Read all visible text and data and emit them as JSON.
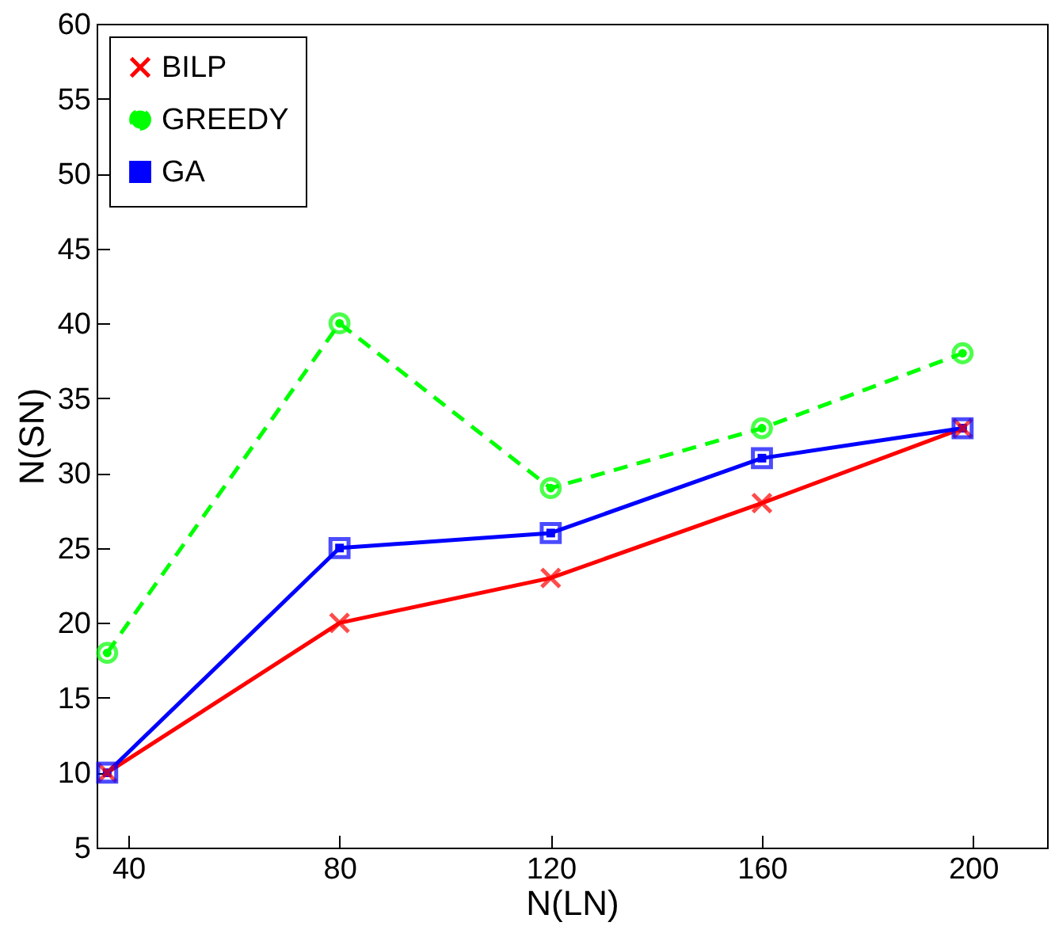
{
  "chart_data": {
    "type": "line",
    "xlabel": "N(LN)",
    "ylabel": "N(SN)",
    "xlim": [
      34,
      214
    ],
    "xticks": [
      40,
      80,
      120,
      160,
      200
    ],
    "ylim": [
      5,
      60
    ],
    "yticks": [
      5,
      10,
      15,
      20,
      25,
      30,
      35,
      40,
      45,
      50,
      55,
      60
    ],
    "grid": false,
    "legend": "top left",
    "series": [
      {
        "name": "BILP",
        "color": "#ff0000",
        "marker": "cross",
        "line_style": "solid",
        "x": [
          36,
          80,
          120,
          160,
          198
        ],
        "values": [
          10,
          20,
          23,
          28,
          33
        ]
      },
      {
        "name": "GREEDY",
        "color": "#00ff00",
        "marker": "circle",
        "line_style": "dashed",
        "x": [
          36,
          80,
          120,
          160,
          198
        ],
        "values": [
          18,
          40,
          29,
          33,
          38
        ]
      },
      {
        "name": "GA",
        "color": "#0000ff",
        "marker": "square",
        "line_style": "solid",
        "x": [
          36,
          80,
          120,
          160,
          198
        ],
        "values": [
          10,
          25,
          26,
          31,
          33
        ]
      }
    ]
  }
}
